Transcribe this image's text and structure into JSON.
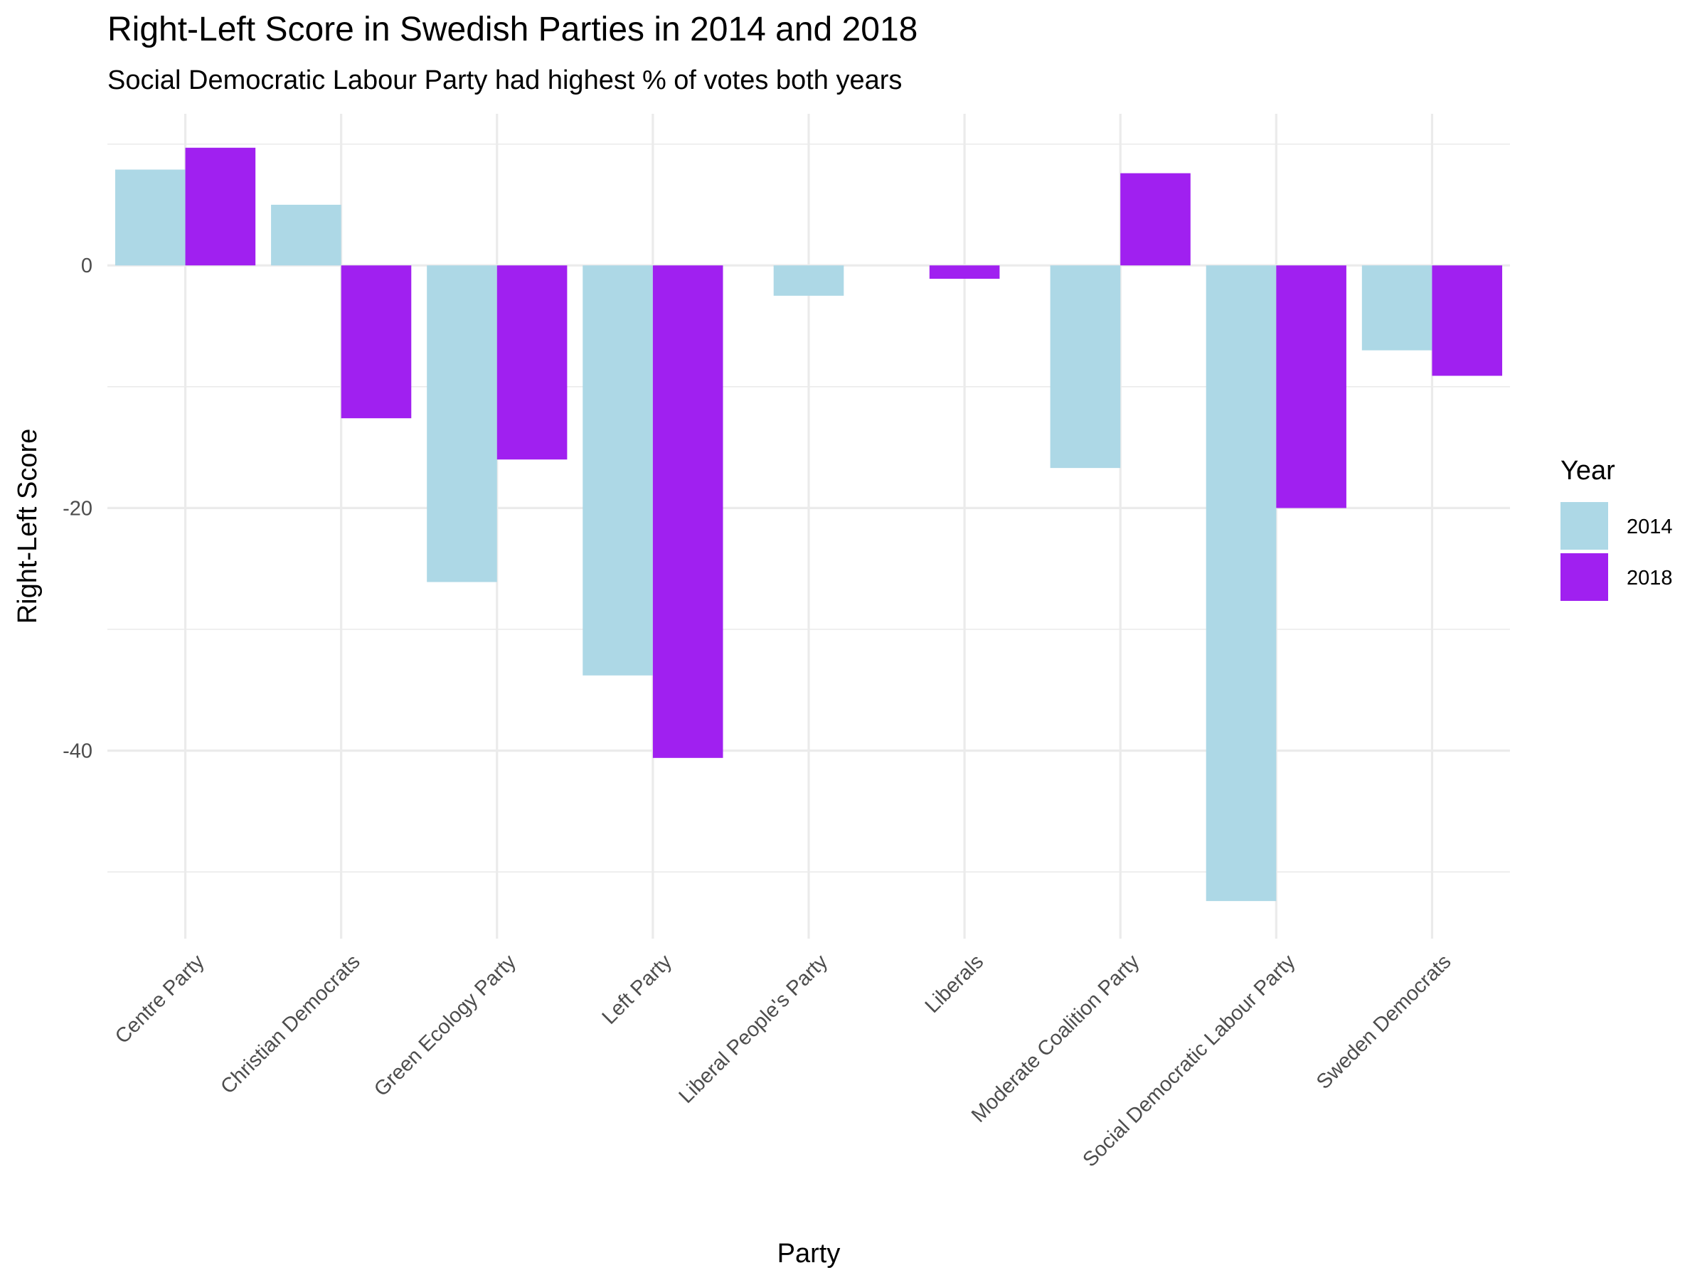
{
  "chart_data": {
    "type": "bar",
    "title": "Right-Left Score in Swedish Parties in 2014 and 2018",
    "subtitle": "Social Democratic Labour Party had highest % of votes both years",
    "xlabel": "Party",
    "ylabel": "Right-Left Score",
    "categories": [
      "Centre Party",
      "Christian Democrats",
      "Green Ecology Party",
      "Left Party",
      "Liberal People's Party",
      "Liberals",
      "Moderate Coalition Party",
      "Social Democratic Labour Party",
      "Sweden Democrats"
    ],
    "series": [
      {
        "name": "2014",
        "color": "#ADD8E6",
        "values": [
          7.9,
          5.0,
          -26.1,
          -33.8,
          -2.5,
          null,
          -16.7,
          -52.4,
          -7.0
        ]
      },
      {
        "name": "2018",
        "color": "#A020F0",
        "values": [
          9.7,
          -12.6,
          -16.0,
          -40.6,
          null,
          -1.1,
          7.6,
          -20.0,
          -9.1
        ]
      }
    ],
    "ylim": [
      -55.5,
      12.5
    ],
    "yticks": [
      0,
      -20,
      -40
    ],
    "yticks_minor": [
      10,
      -10,
      -30,
      -50
    ],
    "grid": true,
    "legend": {
      "title": "Year",
      "position": "right"
    }
  }
}
